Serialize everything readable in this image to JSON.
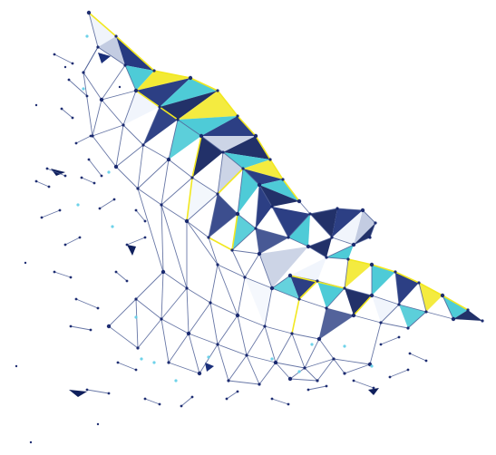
{
  "image": {
    "subject": "",
    "palette": {
      "background": "#ffffff",
      "navy": "#1a2f7a",
      "navy_dark": "#0f1f5c",
      "cyan": "#3fc7d4",
      "yellow": "#f2e81f",
      "light_blue": "#aab7d6",
      "line": "#4e5f96",
      "dot": "#14246b",
      "white_facet": "#eef3fb",
      "sky_dot": "#66d0e8"
    }
  }
}
